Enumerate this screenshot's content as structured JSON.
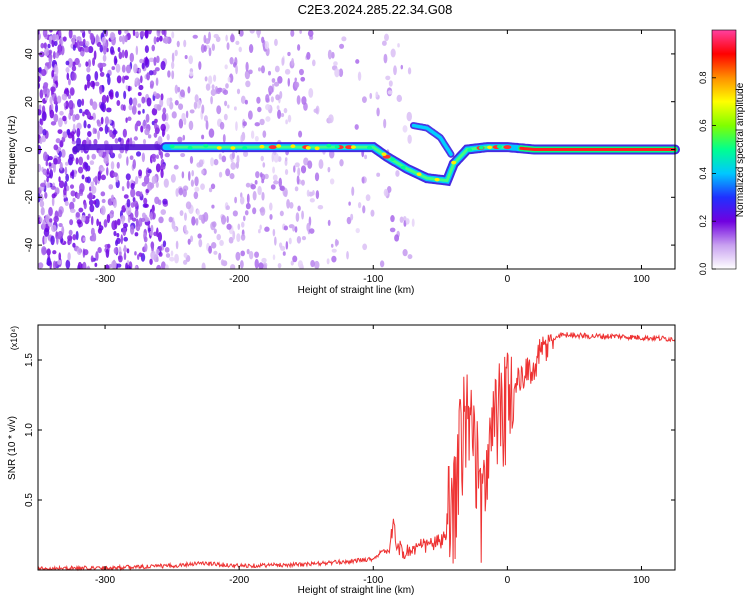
{
  "title": "C2E3.2024.285.22.34.G08",
  "chart_data": [
    {
      "type": "heatmap",
      "xlabel": "Height of straight line (km)",
      "ylabel": "Frequency (Hz)",
      "xlim": [
        -350,
        125
      ],
      "ylim": [
        -50,
        50
      ],
      "xticks": [
        -300,
        -200,
        -100,
        0,
        100
      ],
      "yticks": [
        -40,
        -20,
        0,
        20,
        40
      ],
      "colorbar": {
        "label": "Normalized spectral amplitude",
        "range": [
          0,
          1
        ],
        "ticks": [
          "0.0",
          "0.2",
          "0.4",
          "0.6",
          "0.8"
        ],
        "colors": [
          "#ffffff",
          "#c8a0f0",
          "#7000e0",
          "#2030ff",
          "#00c8ff",
          "#00ff90",
          "#80ff00",
          "#ffff00",
          "#ff9000",
          "#ff0000",
          "#ff40a0"
        ]
      },
      "ridge": [
        {
          "x": -320,
          "f": 1
        },
        {
          "x": -260,
          "f": 1
        },
        {
          "x": -200,
          "f": 1
        },
        {
          "x": -160,
          "f": 1
        },
        {
          "x": -130,
          "f": 1
        },
        {
          "x": -100,
          "f": 1
        },
        {
          "x": -90,
          "f": -3
        },
        {
          "x": -75,
          "f": -8
        },
        {
          "x": -60,
          "f": -12
        },
        {
          "x": -45,
          "f": -13
        },
        {
          "x": -40,
          "f": -6
        },
        {
          "x": -30,
          "f": 0
        },
        {
          "x": -15,
          "f": 1
        },
        {
          "x": 0,
          "f": 1
        },
        {
          "x": 20,
          "f": 0
        },
        {
          "x": 60,
          "f": 0
        },
        {
          "x": 125,
          "f": 0
        }
      ],
      "branch": [
        {
          "x": -70,
          "f": 10
        },
        {
          "x": -60,
          "f": 9
        },
        {
          "x": -50,
          "f": 5
        },
        {
          "x": -42,
          "f": -2
        }
      ]
    },
    {
      "type": "line",
      "xlabel": "Height of straight line (km)",
      "ylabel": "SNR (10 * v/v)",
      "yexponent": "(x10⁴)",
      "xlim": [
        -350,
        125
      ],
      "ylim": [
        0,
        1.75
      ],
      "xticks": [
        -300,
        -200,
        -100,
        0,
        100
      ],
      "yticks": [
        "0.5",
        "1.0",
        "1.5"
      ],
      "series": [
        {
          "color": "#ee3333",
          "x": [
            -350,
            -300,
            -250,
            -230,
            -200,
            -150,
            -120,
            -100,
            -95,
            -88,
            -85,
            -82,
            -78,
            -70,
            -60,
            -50,
            -45,
            -40,
            -38,
            -35,
            -30,
            -25,
            -20,
            -15,
            -10,
            -5,
            0,
            5,
            10,
            15,
            20,
            25,
            30,
            35,
            40,
            50,
            60,
            80,
            100,
            125
          ],
          "y": [
            0.01,
            0.015,
            0.03,
            0.05,
            0.03,
            0.04,
            0.06,
            0.08,
            0.12,
            0.15,
            0.32,
            0.18,
            0.12,
            0.15,
            0.18,
            0.2,
            0.25,
            0.45,
            0.6,
            0.9,
            1.1,
            0.95,
            0.4,
            0.85,
            0.95,
            1.1,
            1.2,
            1.3,
            1.35,
            1.4,
            1.45,
            1.55,
            1.6,
            1.65,
            1.68,
            1.68,
            1.67,
            1.67,
            1.66,
            1.65
          ]
        }
      ]
    }
  ]
}
